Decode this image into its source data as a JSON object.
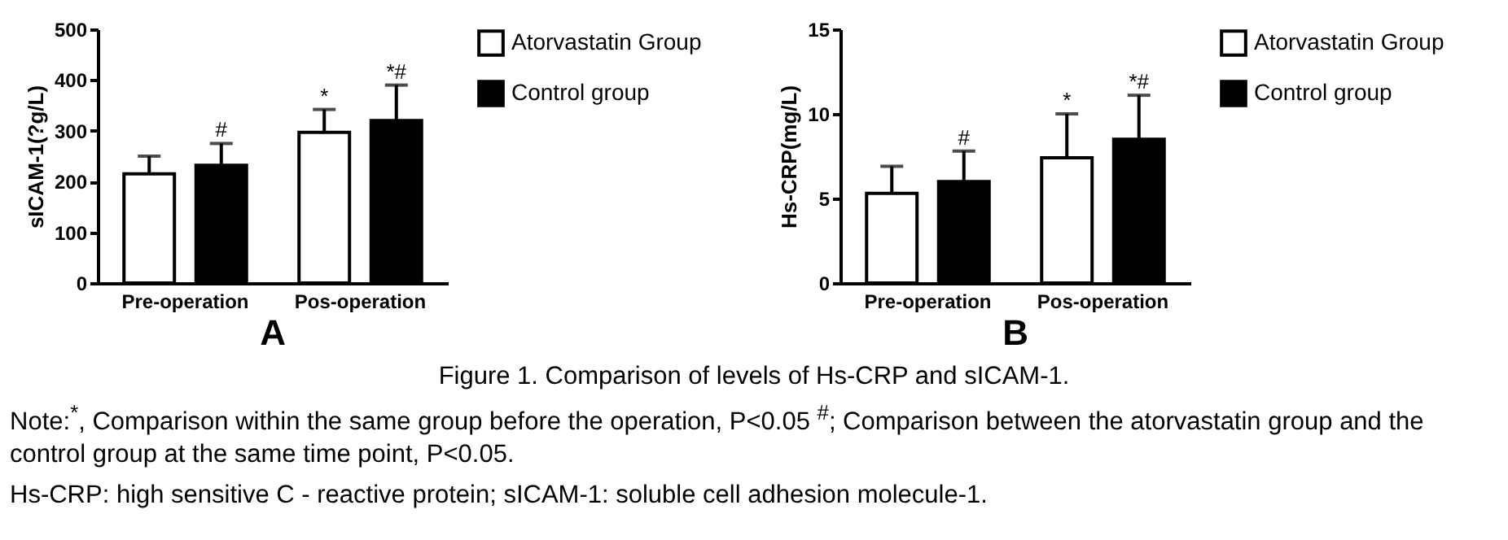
{
  "chart_data": [
    {
      "type": "bar",
      "title": "A",
      "ylabel": "sICAM-1(?g/L)",
      "categories": [
        "Pre-operation",
        "Pos-operation"
      ],
      "series": [
        {
          "name": "Atorvastatin Group",
          "color": "#ffffff",
          "values": [
            215,
            297
          ],
          "errors": [
            [
              215,
              250
            ],
            [
              297,
              342
            ]
          ],
          "value_labels": [
            null,
            "*"
          ]
        },
        {
          "name": "Control group",
          "color": "#000000",
          "values": [
            232,
            320
          ],
          "errors": [
            [
              232,
              275
            ],
            [
              320,
              390
            ]
          ],
          "value_labels": [
            "#",
            "*#"
          ]
        }
      ],
      "ylim": [
        0,
        500
      ],
      "yticks": [
        0,
        100,
        200,
        300,
        400,
        500
      ],
      "legend": "right"
    },
    {
      "type": "bar",
      "title": "B",
      "ylabel": "Hs-CRP(mg/L)",
      "categories": [
        "Pre-operation",
        "Pos-operation"
      ],
      "series": [
        {
          "name": "Atorvastatin Group",
          "color": "#ffffff",
          "values": [
            5.3,
            7.4
          ],
          "errors": [
            [
              5.3,
              6.9
            ],
            [
              7.4,
              10
            ]
          ],
          "value_labels": [
            null,
            "*"
          ]
        },
        {
          "name": "Control group",
          "color": "#000000",
          "values": [
            6,
            8.5
          ],
          "errors": [
            [
              6,
              7.8
            ],
            [
              8.5,
              11.1
            ]
          ],
          "value_labels": [
            "#",
            "*#"
          ]
        }
      ],
      "ylim": [
        0,
        15
      ],
      "yticks": [
        0,
        5,
        10,
        15
      ],
      "legend": "right",
      "annotations": [
        "Figure 1. Comparison of levels of Hs-CRP and sICAM-1.",
        "Note:$^{*}$, Comparison within the same group before the operation, P<0.05 $^{#}$; Comparison between the atorvastatin group and the control group at the same time point, P<0.05.",
        "Hs-CRP: high sensitive C - reactive protein; sICAM-1: soluble cell adhesion molecule-1."
      ]
    }
  ]
}
